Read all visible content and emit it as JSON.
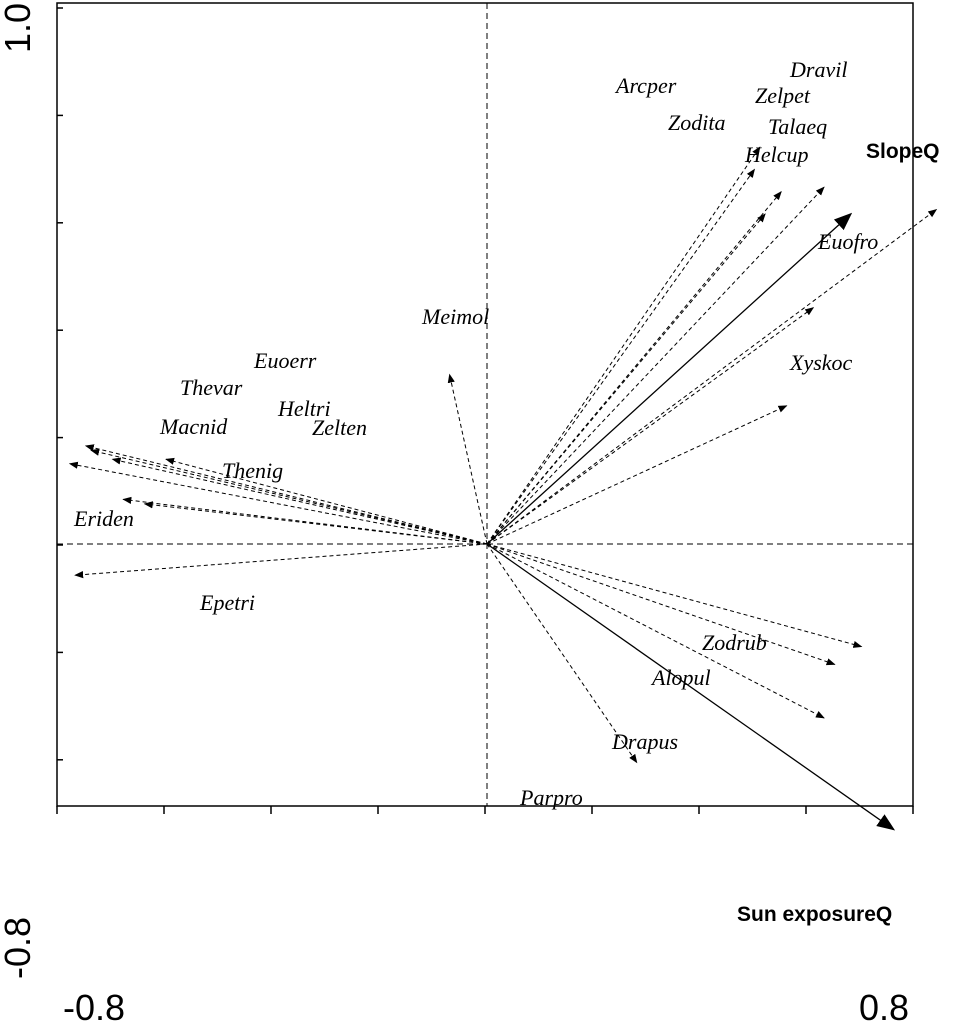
{
  "chart_data": {
    "type": "scatter",
    "subtype": "biplot",
    "title": "",
    "xlabel": "",
    "ylabel": "",
    "xlim": [
      -0.8,
      0.8
    ],
    "ylim": [
      -0.8,
      1.0
    ],
    "x_tick_labels": [
      "-0.8",
      "0.8"
    ],
    "y_tick_labels": [
      "-0.8",
      "1.0"
    ],
    "origin_lines": true,
    "species": [
      {
        "name": "Dravil",
        "x": 0.51,
        "y": 0.89
      },
      {
        "name": "Zelpet",
        "x": 0.5,
        "y": 0.84
      },
      {
        "name": "Arcper",
        "x": 0.63,
        "y": 0.8
      },
      {
        "name": "Zodita",
        "x": 0.84,
        "y": 0.75
      },
      {
        "name": "Talaeq",
        "x": 0.55,
        "y": 0.79
      },
      {
        "name": "Helcup",
        "x": 0.52,
        "y": 0.74
      },
      {
        "name": "Euofro",
        "x": 0.61,
        "y": 0.53
      },
      {
        "name": "Meimol",
        "x": -0.07,
        "y": 0.38
      },
      {
        "name": "Xyskoc",
        "x": 0.56,
        "y": 0.31
      },
      {
        "name": "Euoerr",
        "x": -0.75,
        "y": 0.22
      },
      {
        "name": "Thevar",
        "x": -0.74,
        "y": 0.21
      },
      {
        "name": "Heltri",
        "x": -0.78,
        "y": 0.18
      },
      {
        "name": "Zelten",
        "x": -0.6,
        "y": 0.19
      },
      {
        "name": "Macnid",
        "x": -0.7,
        "y": 0.19
      },
      {
        "name": "Thenig",
        "x": -0.68,
        "y": 0.1
      },
      {
        "name": "Eriden",
        "x": -0.64,
        "y": 0.09
      },
      {
        "name": "Epetri",
        "x": -0.77,
        "y": -0.07
      },
      {
        "name": "Zodrub",
        "x": 0.7,
        "y": -0.23
      },
      {
        "name": "Alopul",
        "x": 0.65,
        "y": -0.27
      },
      {
        "name": "Drapus",
        "x": 0.63,
        "y": -0.39
      },
      {
        "name": "Parpro",
        "x": 0.28,
        "y": -0.49
      }
    ],
    "environment": [
      {
        "name": "SlopeQ",
        "x": 0.68,
        "y": 0.74
      },
      {
        "name": "Sun exposureQ",
        "x": 0.76,
        "y": -0.64
      }
    ]
  }
}
